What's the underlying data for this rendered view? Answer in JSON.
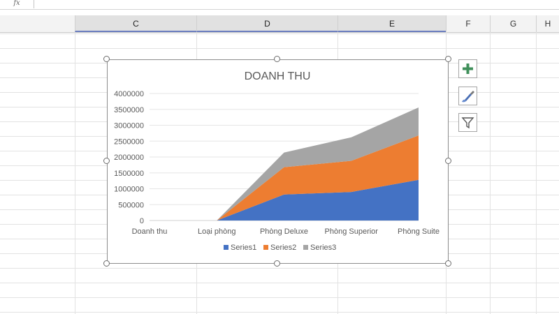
{
  "formula_bar": {
    "fx_label": "fx"
  },
  "columns": [
    {
      "label": "C",
      "selected": true
    },
    {
      "label": "D",
      "selected": true
    },
    {
      "label": "E",
      "selected": true
    },
    {
      "label": "F",
      "selected": false
    },
    {
      "label": "G",
      "selected": false
    },
    {
      "label": "H",
      "selected": false
    }
  ],
  "chart_tools": {
    "add_element_icon": "plus-icon",
    "styles_icon": "paintbrush-icon",
    "filter_icon": "funnel-icon"
  },
  "colors": {
    "series1": "#4472c4",
    "series2": "#ed7d31",
    "series3": "#a5a5a5",
    "plus_green": "#3f8f5a"
  },
  "chart_data": {
    "type": "area",
    "stacked": true,
    "title": "DOANH THU",
    "categories": [
      "Doanh thu",
      "Loại phòng",
      "Phòng Deluxe",
      "Phòng Superior",
      "Phòng Suite"
    ],
    "series": [
      {
        "name": "Series1",
        "values": [
          0,
          0,
          820000,
          900000,
          1280000
        ]
      },
      {
        "name": "Series2",
        "values": [
          0,
          0,
          860000,
          980000,
          1400000
        ]
      },
      {
        "name": "Series3",
        "values": [
          0,
          0,
          460000,
          740000,
          880000
        ]
      }
    ],
    "y_ticks": [
      "0",
      "500000",
      "1000000",
      "1500000",
      "2000000",
      "2500000",
      "3000000",
      "3500000",
      "4000000"
    ],
    "ylim": [
      0,
      4000000
    ],
    "grid": true,
    "legend_position": "bottom"
  }
}
